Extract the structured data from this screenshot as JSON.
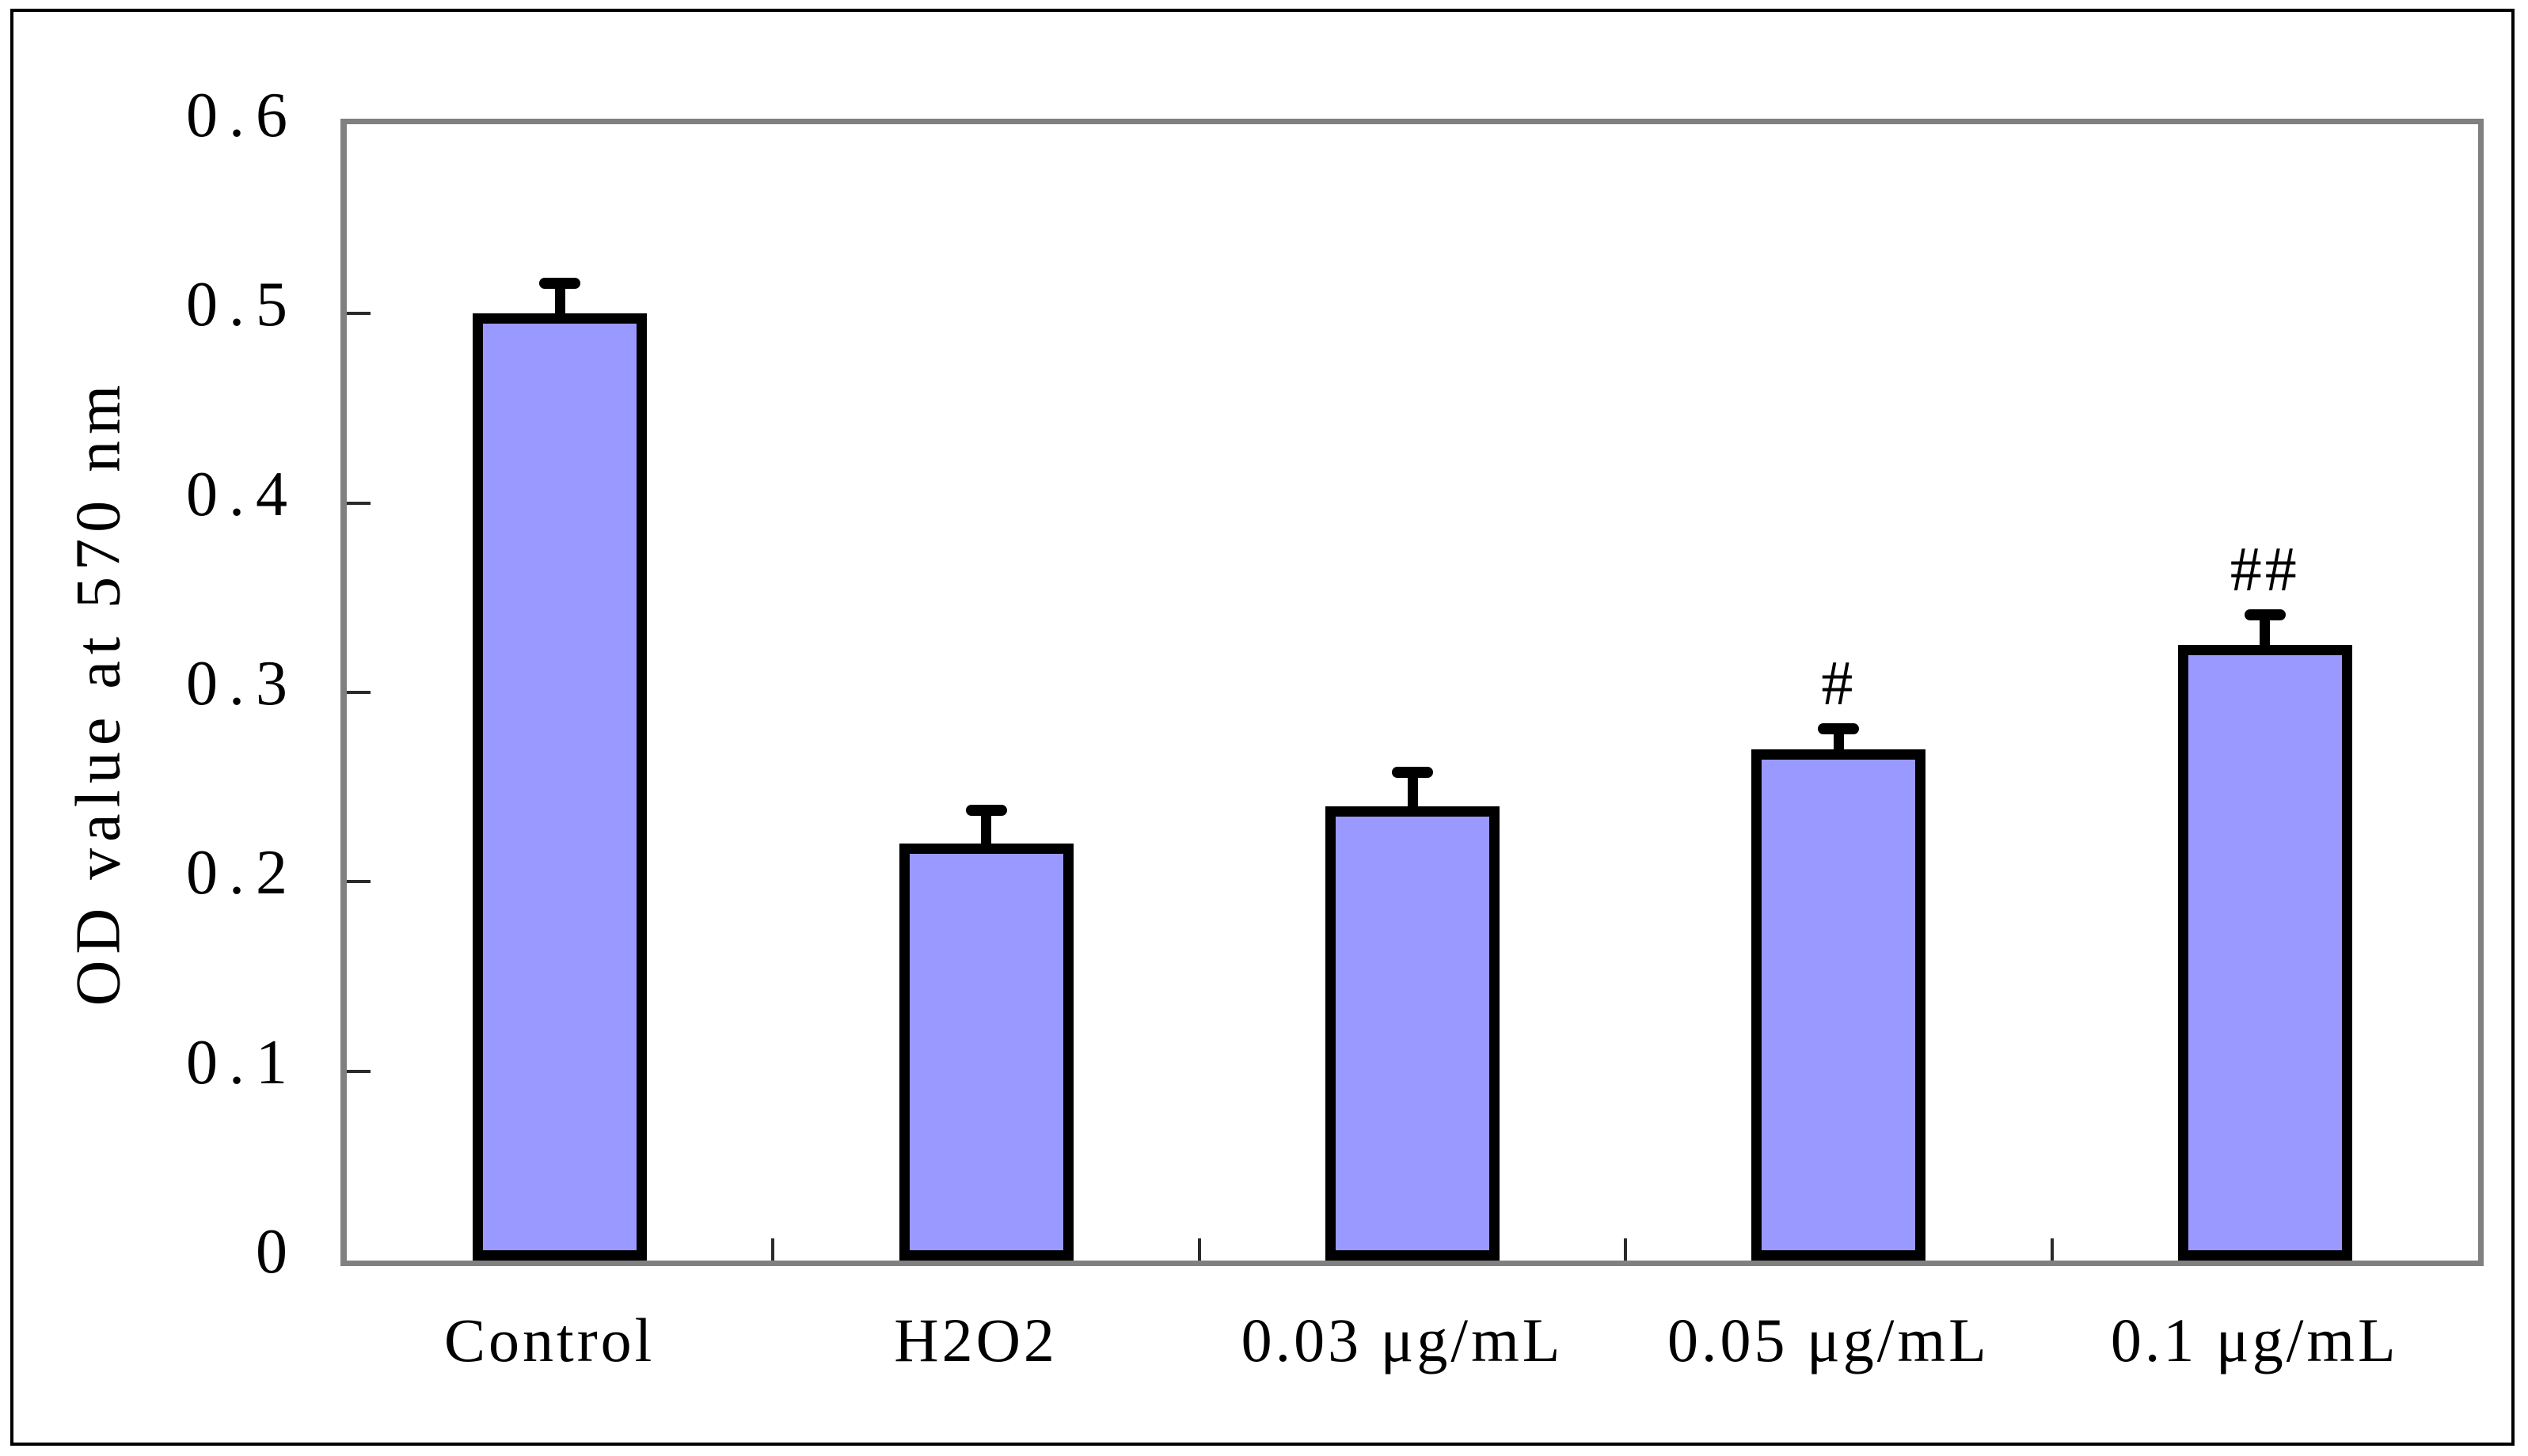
{
  "figure": {
    "background": "#ffffff",
    "frame_border_color": "#000000"
  },
  "chart_data": {
    "type": "bar",
    "title": "",
    "xlabel": "",
    "ylabel": "OD value at 570 nm",
    "ylim": [
      0,
      0.6
    ],
    "yticks": [
      0,
      0.1,
      0.2,
      0.3,
      0.4,
      0.5,
      0.6
    ],
    "ytick_labels": [
      "0",
      "0.1",
      "0.2",
      "0.3",
      "0.4",
      "0.5",
      "0.6"
    ],
    "categories": [
      "Control",
      "H2O2",
      "0.03 μg/mL",
      "0.05 μg/mL",
      "0.1 μg/mL"
    ],
    "series": [
      {
        "name": "OD value at 570 nm",
        "values": [
          0.5,
          0.22,
          0.24,
          0.27,
          0.325
        ],
        "errors": [
          0.013,
          0.015,
          0.015,
          0.008,
          0.013
        ]
      }
    ],
    "annotations": [
      "",
      "",
      "",
      "#",
      "##"
    ],
    "grid": false,
    "legend": "none",
    "bar_fill_color": "#9999ff",
    "bar_border_color": "#000000",
    "error_bar_color": "#000000",
    "axis_border_color": "#808080",
    "tick_color": "#2a2a2a",
    "text_color": "#000000"
  }
}
